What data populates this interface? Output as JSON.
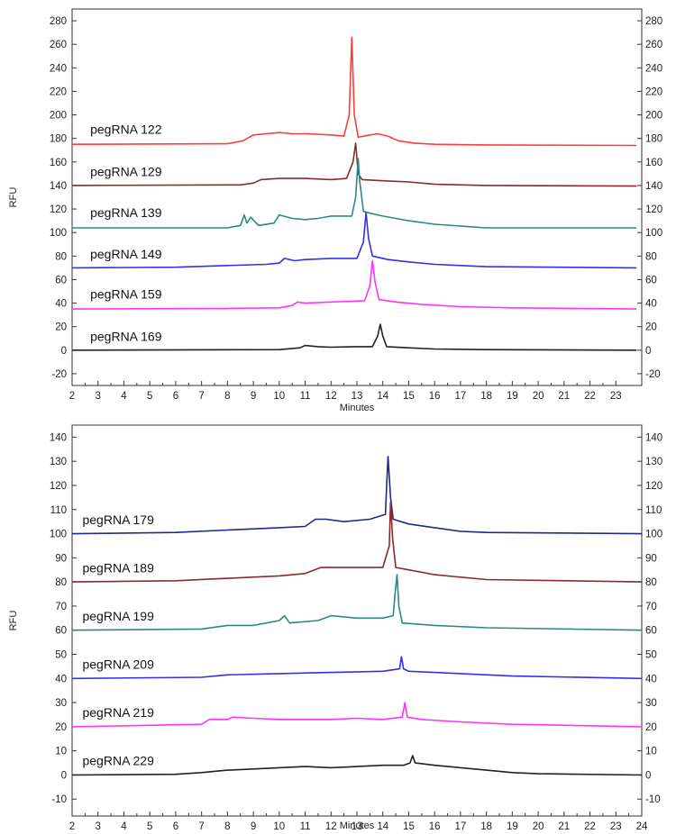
{
  "chart_data": [
    {
      "type": "line",
      "title": "",
      "xlabel": "Minutes",
      "ylabel": "RFU",
      "xlim": [
        2,
        24
      ],
      "ylim": [
        -30,
        290
      ],
      "x_ticks": [
        2,
        3,
        4,
        5,
        6,
        7,
        8,
        9,
        10,
        11,
        12,
        13,
        14,
        15,
        16,
        17,
        18,
        19,
        20,
        21,
        22,
        23
      ],
      "y_ticks": [
        -20,
        0,
        20,
        40,
        60,
        80,
        100,
        120,
        140,
        160,
        180,
        200,
        220,
        240,
        260,
        280
      ],
      "right_axis": true,
      "grid": false,
      "series": [
        {
          "name": "pegRNA 122",
          "color": "#ff3b3b",
          "baseline": 175,
          "label_x": 2.7,
          "label_y": 184,
          "points": [
            [
              2,
              175
            ],
            [
              8,
              175.5
            ],
            [
              8.6,
              178
            ],
            [
              9,
              183
            ],
            [
              9.5,
              184
            ],
            [
              10,
              185
            ],
            [
              10.5,
              184
            ],
            [
              11,
              184
            ],
            [
              12,
              183
            ],
            [
              12.5,
              182
            ],
            [
              12.7,
              200
            ],
            [
              12.8,
              266
            ],
            [
              12.9,
              200
            ],
            [
              13.05,
              181
            ],
            [
              13.5,
              183
            ],
            [
              13.8,
              184
            ],
            [
              14.2,
              182
            ],
            [
              14.6,
              178
            ],
            [
              15.2,
              176
            ],
            [
              16,
              175
            ],
            [
              18,
              174.5
            ],
            [
              23.8,
              174
            ]
          ]
        },
        {
          "name": "pegRNA 129",
          "color": "#8b2a2a",
          "baseline": 140,
          "label_x": 2.7,
          "label_y": 148,
          "points": [
            [
              2,
              140
            ],
            [
              8.5,
              140.5
            ],
            [
              9,
              142
            ],
            [
              9.3,
              145
            ],
            [
              10,
              146
            ],
            [
              11,
              146
            ],
            [
              12,
              145
            ],
            [
              12.6,
              146
            ],
            [
              12.85,
              160
            ],
            [
              12.95,
              176
            ],
            [
              13.05,
              150
            ],
            [
              13.2,
              145
            ],
            [
              14,
              144
            ],
            [
              15,
              143
            ],
            [
              16,
              141
            ],
            [
              18,
              140
            ],
            [
              23.8,
              139.5
            ]
          ]
        },
        {
          "name": "pegRNA 139",
          "color": "#2a8a80",
          "baseline": 104,
          "label_x": 2.7,
          "label_y": 113,
          "points": [
            [
              2,
              104
            ],
            [
              8,
              104
            ],
            [
              8.5,
              106
            ],
            [
              8.65,
              115
            ],
            [
              8.75,
              108
            ],
            [
              8.9,
              113
            ],
            [
              9.2,
              106
            ],
            [
              9.8,
              108
            ],
            [
              10,
              115
            ],
            [
              10.5,
              112
            ],
            [
              11,
              111
            ],
            [
              11.5,
              112
            ],
            [
              12,
              114
            ],
            [
              12.8,
              114
            ],
            [
              12.95,
              130
            ],
            [
              13.05,
              163
            ],
            [
              13.1,
              145
            ],
            [
              13.25,
              118
            ],
            [
              13.6,
              116
            ],
            [
              14,
              114
            ],
            [
              15,
              110
            ],
            [
              16,
              107
            ],
            [
              18,
              104
            ],
            [
              23.8,
              104
            ]
          ]
        },
        {
          "name": "pegRNA 149",
          "color": "#3030ee",
          "baseline": 70,
          "label_x": 2.7,
          "label_y": 78,
          "points": [
            [
              2,
              70
            ],
            [
              6,
              70.5
            ],
            [
              8,
              72
            ],
            [
              9.5,
              73
            ],
            [
              10,
              74
            ],
            [
              10.2,
              78
            ],
            [
              10.6,
              76
            ],
            [
              11,
              77
            ],
            [
              12,
              78
            ],
            [
              13,
              78
            ],
            [
              13.25,
              92
            ],
            [
              13.35,
              117
            ],
            [
              13.45,
              95
            ],
            [
              13.6,
              80
            ],
            [
              14.2,
              77
            ],
            [
              15,
              75
            ],
            [
              16,
              73
            ],
            [
              18,
              71
            ],
            [
              23.8,
              70
            ]
          ]
        },
        {
          "name": "pegRNA 159",
          "color": "#ff33ff",
          "baseline": 35,
          "label_x": 2.7,
          "label_y": 44,
          "points": [
            [
              2,
              35
            ],
            [
              8,
              35.5
            ],
            [
              10,
              36
            ],
            [
              10.5,
              38
            ],
            [
              10.7,
              41
            ],
            [
              11,
              40
            ],
            [
              12,
              41
            ],
            [
              13.3,
              42
            ],
            [
              13.5,
              55
            ],
            [
              13.6,
              76
            ],
            [
              13.7,
              58
            ],
            [
              13.85,
              43
            ],
            [
              14.5,
              41
            ],
            [
              15.5,
              39
            ],
            [
              17,
              37
            ],
            [
              19,
              36
            ],
            [
              23.8,
              35
            ]
          ]
        },
        {
          "name": "pegRNA 169",
          "color": "#222222",
          "baseline": 0,
          "label_x": 2.7,
          "label_y": 8,
          "points": [
            [
              2,
              0
            ],
            [
              10,
              0.5
            ],
            [
              10.8,
              2
            ],
            [
              11,
              4
            ],
            [
              11.5,
              3
            ],
            [
              12,
              2.5
            ],
            [
              13,
              3
            ],
            [
              13.6,
              3
            ],
            [
              13.8,
              12
            ],
            [
              13.9,
              22
            ],
            [
              14.0,
              12
            ],
            [
              14.15,
              3
            ],
            [
              15,
              2
            ],
            [
              16,
              1
            ],
            [
              18,
              0.5
            ],
            [
              23.8,
              0
            ]
          ]
        }
      ]
    },
    {
      "type": "line",
      "title": "",
      "xlabel": "Minutes",
      "ylabel": "RFU",
      "xlim": [
        2,
        24
      ],
      "ylim": [
        -17,
        145
      ],
      "x_ticks": [
        2,
        3,
        4,
        5,
        6,
        7,
        8,
        9,
        10,
        11,
        12,
        13,
        14,
        15,
        16,
        17,
        18,
        19,
        20,
        21,
        22,
        23,
        24
      ],
      "y_ticks": [
        -10,
        0,
        10,
        20,
        30,
        40,
        50,
        60,
        70,
        80,
        90,
        100,
        110,
        120,
        130,
        140
      ],
      "right_axis": true,
      "grid": false,
      "series": [
        {
          "name": "pegRNA 179",
          "color": "#1f2a8a",
          "baseline": 100,
          "label_x": 2.4,
          "label_y": 104,
          "points": [
            [
              2,
              100
            ],
            [
              6,
              100.5
            ],
            [
              8,
              101.5
            ],
            [
              10,
              102.5
            ],
            [
              11,
              103
            ],
            [
              11.4,
              106
            ],
            [
              11.8,
              106
            ],
            [
              12.5,
              105
            ],
            [
              13.5,
              106
            ],
            [
              14.1,
              108
            ],
            [
              14.15,
              120
            ],
            [
              14.2,
              132
            ],
            [
              14.3,
              115
            ],
            [
              14.4,
              106
            ],
            [
              15,
              104
            ],
            [
              16,
              102.5
            ],
            [
              17,
              101
            ],
            [
              18,
              100.5
            ],
            [
              24,
              100
            ]
          ]
        },
        {
          "name": "pegRNA 189",
          "color": "#8b2a2a",
          "baseline": 80,
          "label_x": 2.4,
          "label_y": 84,
          "points": [
            [
              2,
              80
            ],
            [
              6,
              80.5
            ],
            [
              8,
              81.5
            ],
            [
              10,
              82.5
            ],
            [
              11,
              83.5
            ],
            [
              11.6,
              86
            ],
            [
              12,
              86
            ],
            [
              13,
              86
            ],
            [
              14,
              86
            ],
            [
              14.25,
              95
            ],
            [
              14.3,
              113
            ],
            [
              14.38,
              98
            ],
            [
              14.5,
              86
            ],
            [
              15,
              85
            ],
            [
              16,
              83
            ],
            [
              17,
              82
            ],
            [
              18,
              81
            ],
            [
              24,
              80
            ]
          ]
        },
        {
          "name": "pegRNA 199",
          "color": "#2a8a80",
          "baseline": 60,
          "label_x": 2.4,
          "label_y": 64,
          "points": [
            [
              2,
              60
            ],
            [
              7,
              60.5
            ],
            [
              8,
              62
            ],
            [
              9,
              62
            ],
            [
              9.5,
              63
            ],
            [
              10,
              64
            ],
            [
              10.2,
              66
            ],
            [
              10.4,
              63
            ],
            [
              11.5,
              64
            ],
            [
              12,
              66
            ],
            [
              13,
              65
            ],
            [
              14,
              65
            ],
            [
              14.4,
              66
            ],
            [
              14.48,
              76
            ],
            [
              14.55,
              83
            ],
            [
              14.62,
              70
            ],
            [
              14.75,
              63
            ],
            [
              16,
              62
            ],
            [
              18,
              61
            ],
            [
              24,
              60
            ]
          ]
        },
        {
          "name": "pegRNA 209",
          "color": "#3030ee",
          "baseline": 40,
          "label_x": 2.4,
          "label_y": 44,
          "points": [
            [
              2,
              40
            ],
            [
              7,
              40.5
            ],
            [
              8,
              41.5
            ],
            [
              10,
              42
            ],
            [
              12,
              42.5
            ],
            [
              14,
              43
            ],
            [
              14.65,
              44
            ],
            [
              14.72,
              49
            ],
            [
              14.8,
              44
            ],
            [
              15,
              43
            ],
            [
              17,
              42
            ],
            [
              19,
              41
            ],
            [
              24,
              40
            ]
          ]
        },
        {
          "name": "pegRNA 219",
          "color": "#ff33ff",
          "baseline": 20,
          "label_x": 2.4,
          "label_y": 24,
          "points": [
            [
              2,
              20
            ],
            [
              7,
              21
            ],
            [
              7.3,
              23
            ],
            [
              8,
              23
            ],
            [
              8.2,
              24
            ],
            [
              9,
              23.5
            ],
            [
              10,
              23
            ],
            [
              12,
              23
            ],
            [
              13,
              23.5
            ],
            [
              14,
              23
            ],
            [
              14.75,
              24
            ],
            [
              14.85,
              30
            ],
            [
              14.95,
              24
            ],
            [
              15.5,
              23
            ],
            [
              17,
              22
            ],
            [
              19,
              21
            ],
            [
              24,
              20
            ]
          ]
        },
        {
          "name": "pegRNA 229",
          "color": "#222222",
          "baseline": 0,
          "label_x": 2.4,
          "label_y": 4,
          "points": [
            [
              2,
              0
            ],
            [
              6,
              0.3
            ],
            [
              7,
              1
            ],
            [
              8,
              2
            ],
            [
              9,
              2.5
            ],
            [
              10,
              3
            ],
            [
              11,
              3.5
            ],
            [
              12,
              3
            ],
            [
              13,
              3.5
            ],
            [
              14,
              4
            ],
            [
              14.8,
              4
            ],
            [
              15.05,
              5
            ],
            [
              15.15,
              8
            ],
            [
              15.25,
              5
            ],
            [
              16,
              4
            ],
            [
              17,
              3
            ],
            [
              18,
              2
            ],
            [
              19,
              1
            ],
            [
              20,
              0.5
            ],
            [
              24,
              0
            ]
          ]
        }
      ]
    }
  ]
}
